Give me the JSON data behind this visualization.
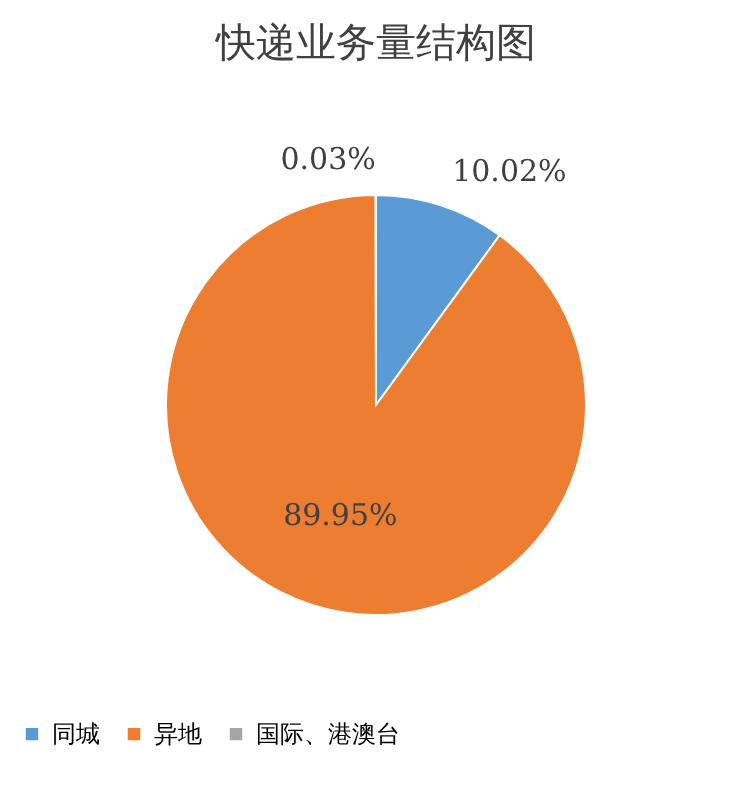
{
  "chart_data": {
    "type": "pie",
    "title": "快递业务量结构图",
    "categories": [
      "同城",
      "异地",
      "国际、港澳台"
    ],
    "values": [
      10.02,
      89.95,
      0.03
    ],
    "colors": [
      "#5b9bd5",
      "#ed7d31",
      "#a5a5a5"
    ],
    "value_labels": [
      "10.02%",
      "89.95%",
      "0.03%"
    ],
    "legend": "bottom"
  }
}
